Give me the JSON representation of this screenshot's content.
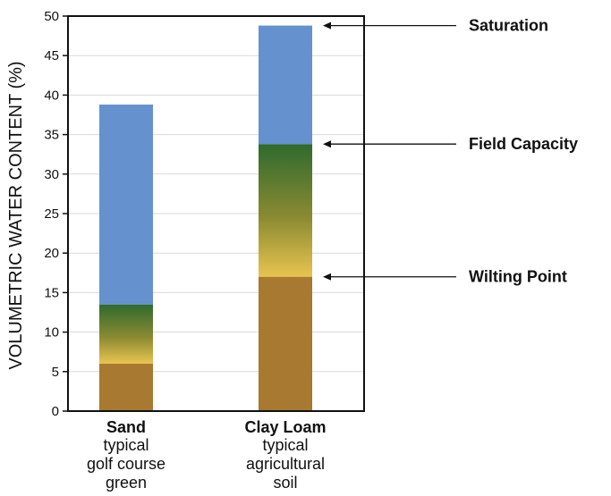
{
  "chart_data": {
    "type": "bar",
    "stacked": true,
    "title": "",
    "xlabel": "",
    "ylabel": "VOLUMETRIC WATER CONTENT (%)",
    "ylim": [
      0,
      50
    ],
    "yticks": [
      0,
      5,
      10,
      15,
      20,
      25,
      30,
      35,
      40,
      45,
      50
    ],
    "grid": true,
    "categories": [
      {
        "name": "Sand",
        "sub": [
          "typical",
          "golf course",
          "green"
        ]
      },
      {
        "name": "Clay Loam",
        "sub": [
          "typical",
          "agricultural",
          "soil"
        ]
      }
    ],
    "bars": [
      {
        "wilting_point": 6,
        "field_capacity": 13.5,
        "saturation": 38.8
      },
      {
        "wilting_point": 17,
        "field_capacity": 33.8,
        "saturation": 48.8
      }
    ],
    "annotations": [
      {
        "label": "Saturation",
        "value": 48.8
      },
      {
        "label": "Field Capacity",
        "value": 33.8
      },
      {
        "label": "Wilting Point",
        "value": 17
      }
    ],
    "colors": {
      "unavailable": "#a87930",
      "available_bottom": "#e8c450",
      "available_top": "#2f6a2e",
      "gravitational": "#6691cf",
      "grid": "#d9d9d9",
      "axis": "#111111"
    }
  }
}
